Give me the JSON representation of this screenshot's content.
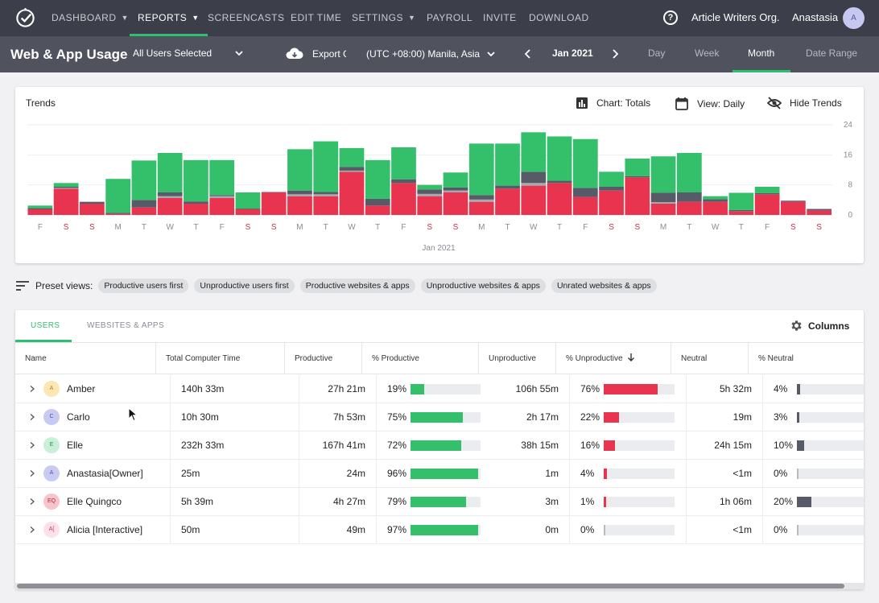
{
  "nav": {
    "items": [
      "DASHBOARD",
      "REPORTS",
      "SCREENCASTS",
      "EDIT TIME",
      "SETTINGS",
      "PAYROLL",
      "INVITE",
      "DOWNLOAD"
    ],
    "active": "REPORTS",
    "org": "Article Writers Org.",
    "user": "Anastasia",
    "user_initial": "A",
    "help_glyph": "?"
  },
  "subheader": {
    "title": "Web & App Usage",
    "users_filter": "All Users Selected",
    "export": "Export CSV",
    "timezone": "(UTC +08:00) Manila, Asia",
    "month": "Jan 2021",
    "ranges": [
      "Day",
      "Week",
      "Month",
      "Date Range"
    ],
    "active_range": "Month"
  },
  "trends": {
    "title": "Trends",
    "chart_type_label": "Chart: Totals",
    "view_label": "View: Daily",
    "hide_label": "Hide Trends"
  },
  "chart_data": {
    "type": "bar",
    "stacked": true,
    "xlabel": "Jan 2021",
    "ylim": [
      0,
      24
    ],
    "yticks": [
      0,
      8,
      16,
      24
    ],
    "categories": [
      "F",
      "S",
      "S",
      "M",
      "T",
      "W",
      "T",
      "F",
      "S",
      "S",
      "M",
      "T",
      "W",
      "T",
      "F",
      "S",
      "S",
      "M",
      "T",
      "W",
      "T",
      "F",
      "S",
      "S",
      "M",
      "T",
      "W",
      "T",
      "F",
      "S",
      "S"
    ],
    "weekend_color": "#c0334d",
    "series": [
      {
        "color": "#e8344e",
        "values": [
          1.5,
          7,
          3,
          0.3,
          2,
          4.5,
          3,
          4.5,
          1.5,
          6,
          5,
          5,
          11.5,
          2.5,
          8.5,
          5,
          6,
          3.5,
          7,
          7.8,
          8.5,
          4.8,
          6.5,
          10,
          3,
          3.5,
          3.5,
          1,
          5.5,
          3.5,
          1.2
        ]
      },
      {
        "color": "#a7a9b0",
        "values": [
          0,
          0.2,
          0,
          0,
          0,
          0.5,
          0,
          0.5,
          0,
          0,
          0.5,
          0.5,
          0.3,
          0,
          0,
          0.6,
          0.5,
          0.6,
          0,
          0.7,
          0,
          0,
          0,
          0,
          0.4,
          0,
          0,
          0,
          0,
          0,
          0
        ]
      },
      {
        "color": "#575b68",
        "values": [
          0.3,
          0.3,
          0.5,
          0.3,
          2,
          1,
          0.6,
          0.3,
          0.2,
          0.1,
          1,
          0.6,
          1,
          1.8,
          1,
          1.2,
          0.8,
          1.2,
          0.8,
          3,
          0.6,
          2.4,
          1,
          0.3,
          2.5,
          2.5,
          0.7,
          0.3,
          0.3,
          0.3,
          0.4
        ]
      },
      {
        "color": "#34c06b",
        "values": [
          0.7,
          1,
          0,
          9,
          10.5,
          10.5,
          11,
          9.3,
          4.3,
          0,
          11,
          13.5,
          5,
          10.3,
          8.5,
          1.2,
          4,
          13.7,
          11.2,
          10.5,
          11.8,
          13,
          4,
          4.7,
          9.7,
          10.5,
          0.8,
          4.6,
          1.7,
          0,
          0
        ]
      }
    ]
  },
  "presets": {
    "label": "Preset views:",
    "chips": [
      "Productive users first",
      "Unproductive users first",
      "Productive websites & apps",
      "Unproductive websites & apps",
      "Unrated websites & apps"
    ]
  },
  "table": {
    "tabs": [
      "USERS",
      "WEBSITES & APPS"
    ],
    "active_tab": "USERS",
    "columns_button": "Columns",
    "headers": [
      "Name",
      "Total Computer Time",
      "Productive",
      "% Productive",
      "Unproductive",
      "% Unproductive",
      "Neutral",
      "% Neutral"
    ],
    "sort_column": "% Unproductive",
    "sort_dir": "desc",
    "colors": {
      "productive": "#34c06b",
      "unproductive": "#e8344e",
      "neutral": "#575b68",
      "track": "#ebecf0"
    },
    "rows": [
      {
        "initials": "A",
        "avatar_bg": "#fde6b3",
        "avatar_fg": "#a07b2c",
        "name": "Amber",
        "total": "140h 33m",
        "productive": "27h 21m",
        "pct_prod": "19%",
        "prod_frac": 0.19,
        "unproductive": "106h 55m",
        "pct_unprod": "76%",
        "unprod_frac": 0.76,
        "neutral": "5h 32m",
        "pct_neutral": "4%",
        "neutral_frac": 0.04
      },
      {
        "initials": "C",
        "avatar_bg": "#c9caf2",
        "avatar_fg": "#4e53a0",
        "name": "Carlo",
        "total": "10h 30m",
        "productive": "7h 53m",
        "pct_prod": "75%",
        "prod_frac": 0.75,
        "unproductive": "2h 17m",
        "pct_unprod": "22%",
        "unprod_frac": 0.22,
        "neutral": "19m",
        "pct_neutral": "3%",
        "neutral_frac": 0.03
      },
      {
        "initials": "E",
        "avatar_bg": "#c7f0d7",
        "avatar_fg": "#2a8a52",
        "name": "Elle",
        "total": "232h 33m",
        "productive": "167h 41m",
        "pct_prod": "72%",
        "prod_frac": 0.72,
        "unproductive": "38h 15m",
        "pct_unprod": "16%",
        "unprod_frac": 0.16,
        "neutral": "24h 15m",
        "pct_neutral": "10%",
        "neutral_frac": 0.1
      },
      {
        "initials": "A",
        "avatar_bg": "#c9caf2",
        "avatar_fg": "#4e53a0",
        "name": "Anastasia[Owner]",
        "total": "25m",
        "productive": "24m",
        "pct_prod": "96%",
        "prod_frac": 0.96,
        "unproductive": "1m",
        "pct_unprod": "4%",
        "unprod_frac": 0.04,
        "neutral": "<1m",
        "pct_neutral": "0%",
        "neutral_frac": 0.0
      },
      {
        "initials": "EQ",
        "avatar_bg": "#f8c4c9",
        "avatar_fg": "#a3303e",
        "name": "Elle Quingco",
        "total": "5h 39m",
        "productive": "4h 27m",
        "pct_prod": "79%",
        "prod_frac": 0.79,
        "unproductive": "3m",
        "pct_unprod": "1%",
        "unprod_frac": 0.01,
        "neutral": "1h 06m",
        "pct_neutral": "20%",
        "neutral_frac": 0.2
      },
      {
        "initials": "A[",
        "avatar_bg": "#fde0e8",
        "avatar_fg": "#b0405e",
        "name": "Alicia [Interactive]",
        "total": "50m",
        "productive": "49m",
        "pct_prod": "97%",
        "prod_frac": 0.97,
        "unproductive": "0m",
        "pct_unprod": "0%",
        "unprod_frac": 0.0,
        "neutral": "<1m",
        "pct_neutral": "0%",
        "neutral_frac": 0.0
      }
    ]
  }
}
